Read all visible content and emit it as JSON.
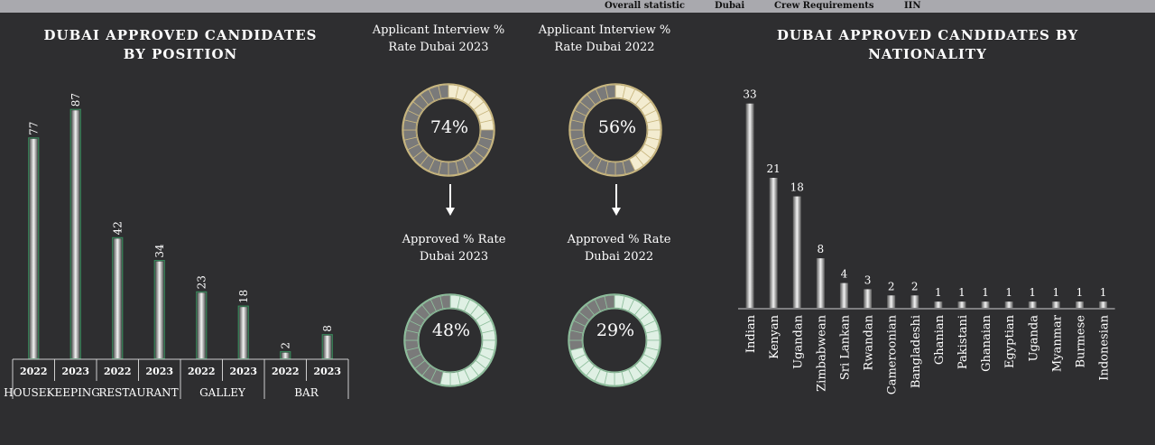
{
  "nav": {
    "items": [
      "Overall statistic",
      "Dubai",
      "Crew Requirements",
      "IIN"
    ]
  },
  "left_panel": {
    "title_line1": "DUBAI APPROVED CANDIDATES",
    "title_line2": "BY POSITION"
  },
  "middle": {
    "interview_2023": {
      "line1": "Applicant Interview %",
      "line2": "Rate Dubai 2023",
      "value_label": "74%"
    },
    "interview_2022": {
      "line1": "Applicant Interview %",
      "line2": "Rate Dubai 2022",
      "value_label": "56%"
    },
    "approved_2023": {
      "line1": "Approved % Rate",
      "line2": "Dubai 2023",
      "value_label": "48%"
    },
    "approved_2022": {
      "line1": "Approved % Rate",
      "line2": "Dubai 2022",
      "value_label": "29%"
    }
  },
  "right_panel": {
    "title_line1": "DUBAI APPROVED CANDIDATES BY",
    "title_line2": "NATIONALITY"
  },
  "colors": {
    "background": "#2e2e30",
    "interview_ring": "#f3ecd0",
    "approved_ring": "#dff0e4",
    "ring_filled": "#7a7a7a",
    "bar_glow_left": "#3fae6e"
  },
  "chart_data": [
    {
      "type": "bar",
      "title": "DUBAI APPROVED CANDIDATES BY POSITION",
      "groups": [
        "HOUSEKEEPING",
        "RESTAURANT",
        "GALLEY",
        "BAR"
      ],
      "categories": [
        "2022",
        "2023",
        "2022",
        "2023",
        "2022",
        "2023",
        "2022",
        "2023"
      ],
      "values": [
        77,
        87,
        42,
        34,
        23,
        18,
        2,
        8
      ],
      "ylim": [
        0,
        95
      ]
    },
    {
      "type": "pie",
      "title": "Applicant Interview % Rate Dubai 2023",
      "values": [
        74,
        26
      ]
    },
    {
      "type": "pie",
      "title": "Applicant Interview % Rate Dubai 2022",
      "values": [
        56,
        44
      ]
    },
    {
      "type": "pie",
      "title": "Approved % Rate Dubai 2023",
      "values": [
        48,
        52
      ]
    },
    {
      "type": "pie",
      "title": "Approved % Rate Dubai 2022",
      "values": [
        29,
        71
      ]
    },
    {
      "type": "bar",
      "title": "DUBAI APPROVED CANDIDATES BY NATIONALITY",
      "categories": [
        "Indian",
        "Kenyan",
        "Ugandan",
        "Zimbabwean",
        "Sri Lankan",
        "Rwandan",
        "Cameroonian",
        "Bangladeshi",
        "Ghanian",
        "Pakistani",
        "Ghanaian",
        "Egyptian",
        "Uganda",
        "Myanmar",
        "Burmese",
        "Indonesian"
      ],
      "values": [
        33,
        21,
        18,
        8,
        4,
        3,
        2,
        2,
        1,
        1,
        1,
        1,
        1,
        1,
        1,
        1
      ],
      "ylim": [
        0,
        35
      ]
    }
  ]
}
